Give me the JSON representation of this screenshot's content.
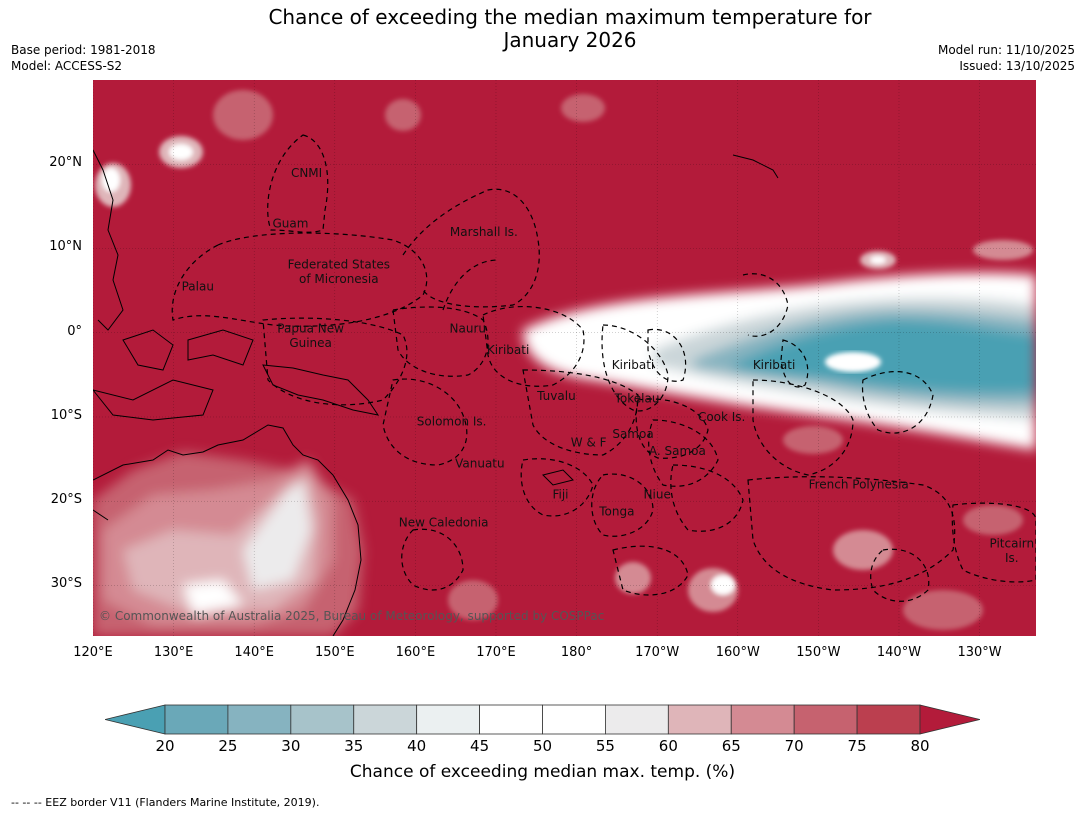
{
  "title_line1": "Chance of exceeding the median maximum temperature for",
  "title_line2": "January 2026",
  "meta": {
    "base_period": "Base period: 1981-2018",
    "model": "Model: ACCESS-S2",
    "model_run": "Model run: 11/10/2025",
    "issued": "Issued: 13/10/2025"
  },
  "map": {
    "lon_labels": [
      "120°E",
      "130°E",
      "140°E",
      "150°E",
      "160°E",
      "170°E",
      "180°",
      "170°W",
      "160°W",
      "150°W",
      "140°W",
      "130°W"
    ],
    "lat_labels": [
      "20°N",
      "10°N",
      "0°",
      "10°S",
      "20°S",
      "30°S"
    ],
    "lon_range": [
      120,
      237
    ],
    "lat_range": [
      -36,
      30
    ],
    "regions": [
      {
        "name": "CNMI",
        "lon": 146.5,
        "lat": 18.5
      },
      {
        "name": "Guam",
        "lon": 144.5,
        "lat": 12.5
      },
      {
        "name": "Marshall Is.",
        "lon": 168.5,
        "lat": 11.5
      },
      {
        "name": "Federated States",
        "lon": 150.5,
        "lat": 7.6
      },
      {
        "name": "of Micronesia",
        "lon": 150.5,
        "lat": 5.9
      },
      {
        "name": "Palau",
        "lon": 133,
        "lat": 5
      },
      {
        "name": "Papua New",
        "lon": 147,
        "lat": 0
      },
      {
        "name": "Guinea",
        "lon": 147,
        "lat": -1.7
      },
      {
        "name": "Nauru",
        "lon": 166.5,
        "lat": 0
      },
      {
        "name": "Kiribati",
        "lon": 171.5,
        "lat": -2.5
      },
      {
        "name": "Kiribati",
        "lon": 187,
        "lat": -4.3
      },
      {
        "name": "Kiribati",
        "lon": 204.5,
        "lat": -4.3
      },
      {
        "name": "Tuvalu",
        "lon": 177.5,
        "lat": -8
      },
      {
        "name": "Tokelau",
        "lon": 187.5,
        "lat": -8.3
      },
      {
        "name": "Cook Is.",
        "lon": 198,
        "lat": -10.5
      },
      {
        "name": "Solomon Is.",
        "lon": 164.5,
        "lat": -11
      },
      {
        "name": "W & F",
        "lon": 181.5,
        "lat": -13.5
      },
      {
        "name": "Samoa",
        "lon": 187,
        "lat": -12.5
      },
      {
        "name": "A. Samoa",
        "lon": 192.5,
        "lat": -14.5
      },
      {
        "name": "Vanuatu",
        "lon": 168,
        "lat": -16
      },
      {
        "name": "Fiji",
        "lon": 178,
        "lat": -19.7
      },
      {
        "name": "Niue",
        "lon": 190,
        "lat": -19.7
      },
      {
        "name": "Tonga",
        "lon": 185,
        "lat": -21.7
      },
      {
        "name": "French Polynesia",
        "lon": 215,
        "lat": -18.5
      },
      {
        "name": "New Caledonia",
        "lon": 163.5,
        "lat": -23
      },
      {
        "name": "Pitcairn",
        "lon": 234,
        "lat": -25.5
      },
      {
        "name": "Is.",
        "lon": 234,
        "lat": -27.2
      }
    ],
    "copyright": "© Commonwealth of Australia 2025, Bureau of Meteorology, supported by COSPPac"
  },
  "colorbar": {
    "ticks": [
      "20",
      "25",
      "30",
      "35",
      "40",
      "45",
      "50",
      "55",
      "60",
      "65",
      "70",
      "75",
      "80"
    ],
    "colors": [
      "#6aa8b8",
      "#86b3c0",
      "#a7c3ca",
      "#cbd6d9",
      "#ebf0f1",
      "#ffffff",
      "#ffffff",
      "#ecebec",
      "#dfb5b9",
      "#d48a93",
      "#c6626f",
      "#bb3f4f"
    ],
    "under_color": "#4aa0b3",
    "over_color": "#b31b3a",
    "label": "Chance of exceeding median max. temp. (%)"
  },
  "footnote": "--  --  -- EEZ border V11 (Flanders Marine Institute, 2019)."
}
